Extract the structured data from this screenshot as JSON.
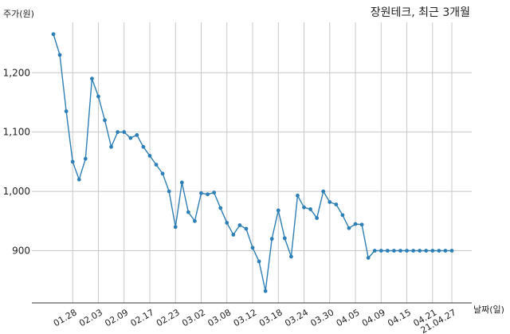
{
  "chart_data": {
    "type": "line",
    "title": "장원테크, 최근 3개월",
    "ylabel": "주가(원)",
    "xlabel": "날짜(일)",
    "ylim": [
      812,
      1285
    ],
    "yticks": [
      {
        "value": 900,
        "label": "900"
      },
      {
        "value": 1000,
        "label": "1,000"
      },
      {
        "value": 1100,
        "label": "1,100"
      },
      {
        "value": 1200,
        "label": "1,200"
      }
    ],
    "xticks": [
      {
        "index": 3,
        "label": "01.28"
      },
      {
        "index": 7,
        "label": "02.03"
      },
      {
        "index": 11,
        "label": "02.09"
      },
      {
        "index": 15,
        "label": "02.17"
      },
      {
        "index": 19,
        "label": "02.23"
      },
      {
        "index": 23,
        "label": "03.02"
      },
      {
        "index": 27,
        "label": "03.08"
      },
      {
        "index": 31,
        "label": "03.12"
      },
      {
        "index": 35,
        "label": "03.18"
      },
      {
        "index": 39,
        "label": "03.24"
      },
      {
        "index": 43,
        "label": "03.30"
      },
      {
        "index": 47,
        "label": "04.05"
      },
      {
        "index": 51,
        "label": "04.09"
      },
      {
        "index": 55,
        "label": "04.15"
      },
      {
        "index": 59,
        "label": "04.21"
      },
      {
        "index": 62,
        "label": "21.04.27"
      }
    ],
    "grid": true,
    "series": [
      {
        "color": "#2e7fb5",
        "values": [
          1265,
          1230,
          1135,
          1050,
          1020,
          1055,
          1190,
          1160,
          1120,
          1075,
          1100,
          1100,
          1090,
          1095,
          1075,
          1060,
          1045,
          1030,
          1000,
          940,
          1015,
          965,
          950,
          997,
          995,
          998,
          972,
          947,
          927,
          943,
          937,
          905,
          882,
          832,
          920,
          968,
          921,
          890,
          993,
          973,
          970,
          955,
          1000,
          982,
          978,
          960,
          938,
          945,
          944,
          888,
          900,
          900,
          900,
          900,
          900,
          900,
          900,
          900,
          900,
          900,
          900,
          900,
          900
        ]
      }
    ]
  }
}
